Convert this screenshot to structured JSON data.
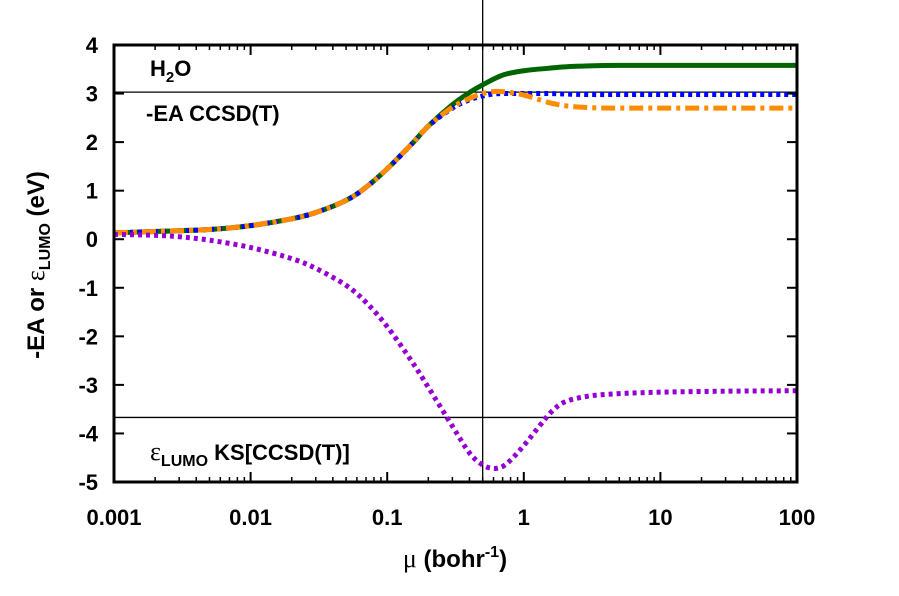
{
  "chart_data": {
    "type": "line",
    "xscale": "log",
    "xlim": [
      0.001,
      100
    ],
    "ylim": [
      -5,
      4
    ],
    "xticks": [
      "0.001",
      "0.01",
      "0.1",
      "1",
      "10",
      "100"
    ],
    "yticks": [
      "4",
      "3",
      "2",
      "1",
      "0",
      "-1",
      "-2",
      "-3",
      "-4",
      "-5"
    ],
    "xlabel": {
      "symbol": "μ",
      "text": "(bohr",
      "sup": "-1",
      "close": ")"
    },
    "ylabel": {
      "pre": "-EA or ",
      "symbol": "ε",
      "sub": "LUMO",
      "post": " (eV)"
    },
    "annotations": {
      "molecule": {
        "a": "H",
        "sub": "2",
        "b": "O"
      },
      "ea_ref": "-EA CCSD(T)",
      "lumo_ref": {
        "symbol": "ε",
        "sub": "LUMO",
        "text": " KS[CCSD(T)]"
      }
    },
    "hlines": [
      3.03,
      -3.67
    ],
    "vlines": [
      0.5
    ],
    "series": [
      {
        "color": "#006400",
        "dash": "solid",
        "x": [
          0.001,
          0.002,
          0.005,
          0.01,
          0.02,
          0.03,
          0.05,
          0.07,
          0.1,
          0.15,
          0.2,
          0.3,
          0.4,
          0.5,
          0.7,
          1,
          1.5,
          2,
          3,
          5,
          10,
          30,
          100
        ],
        "y": [
          0.13,
          0.16,
          0.2,
          0.28,
          0.42,
          0.55,
          0.8,
          1.07,
          1.45,
          1.95,
          2.33,
          2.77,
          3.02,
          3.18,
          3.38,
          3.47,
          3.52,
          3.55,
          3.57,
          3.58,
          3.58,
          3.58,
          3.58
        ]
      },
      {
        "color": "#0000ff",
        "dash": "dot",
        "x": [
          0.001,
          0.002,
          0.005,
          0.01,
          0.02,
          0.03,
          0.05,
          0.07,
          0.1,
          0.15,
          0.2,
          0.3,
          0.4,
          0.5,
          0.6,
          0.7,
          1,
          1.5,
          2,
          3,
          5,
          10,
          30,
          100
        ],
        "y": [
          0.13,
          0.16,
          0.2,
          0.28,
          0.42,
          0.55,
          0.8,
          1.07,
          1.45,
          1.95,
          2.33,
          2.7,
          2.87,
          2.95,
          2.99,
          3.0,
          3.0,
          3.0,
          2.99,
          2.98,
          2.98,
          2.98,
          2.98,
          2.98
        ]
      },
      {
        "color": "#ff8c00",
        "dash": "dashdot",
        "x": [
          0.001,
          0.002,
          0.005,
          0.01,
          0.02,
          0.03,
          0.05,
          0.07,
          0.1,
          0.15,
          0.2,
          0.3,
          0.4,
          0.5,
          0.6,
          0.7,
          1,
          1.5,
          2,
          3,
          5,
          10,
          30,
          100
        ],
        "y": [
          0.13,
          0.16,
          0.2,
          0.28,
          0.42,
          0.55,
          0.8,
          1.07,
          1.45,
          1.95,
          2.33,
          2.72,
          2.9,
          3.0,
          3.04,
          3.04,
          2.97,
          2.82,
          2.75,
          2.71,
          2.7,
          2.7,
          2.7,
          2.7
        ]
      },
      {
        "color": "#9400d3",
        "dash": "dot",
        "x": [
          0.001,
          0.002,
          0.003,
          0.005,
          0.01,
          0.02,
          0.03,
          0.05,
          0.07,
          0.1,
          0.15,
          0.2,
          0.3,
          0.4,
          0.5,
          0.6,
          0.7,
          0.8,
          1,
          1.3,
          1.6,
          2,
          3,
          5,
          10,
          30,
          100
        ],
        "y": [
          0.1,
          0.08,
          0.05,
          -0.02,
          -0.17,
          -0.4,
          -0.6,
          -0.95,
          -1.3,
          -1.8,
          -2.5,
          -3.05,
          -3.85,
          -4.4,
          -4.65,
          -4.72,
          -4.68,
          -4.55,
          -4.25,
          -3.85,
          -3.55,
          -3.35,
          -3.23,
          -3.18,
          -3.15,
          -3.13,
          -3.12
        ]
      }
    ]
  }
}
